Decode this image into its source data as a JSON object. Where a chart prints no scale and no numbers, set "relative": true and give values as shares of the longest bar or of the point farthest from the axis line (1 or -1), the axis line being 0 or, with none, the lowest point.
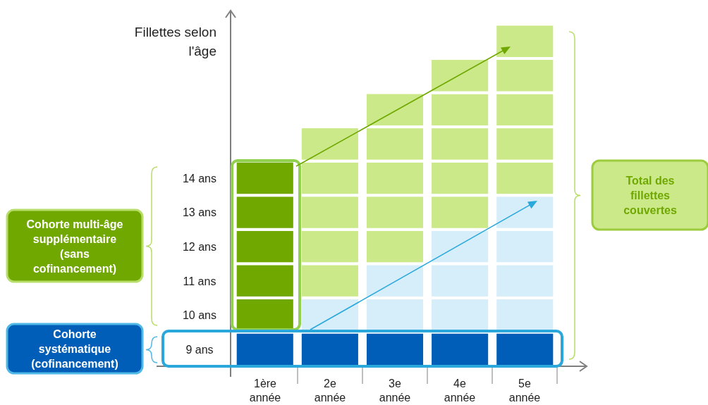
{
  "chart_data": {
    "type": "bar",
    "stacked": true,
    "relative": true,
    "ylabel": "Fillettes selon l'âge",
    "categories": [
      "1ère année",
      "2e année",
      "3e année",
      "4e année",
      "5e année"
    ],
    "series": [
      {
        "name": "9 ans",
        "values": [
          0.1,
          0.1,
          0.1,
          0.1,
          0.1
        ],
        "colors": [
          "#005eb8",
          "#005eb8",
          "#005eb8",
          "#005eb8",
          "#005eb8"
        ]
      },
      {
        "name": "10 ans",
        "values": [
          0.1,
          0.1,
          0.1,
          0.1,
          0.1
        ],
        "colors": [
          "#70a800",
          "#d6eef9",
          "#d6eef9",
          "#d6eef9",
          "#d6eef9"
        ]
      },
      {
        "name": "11 ans",
        "values": [
          0.1,
          0.1,
          0.1,
          0.1,
          0.1
        ],
        "colors": [
          "#70a800",
          "#cce98a",
          "#d6eef9",
          "#d6eef9",
          "#d6eef9"
        ]
      },
      {
        "name": "12 ans",
        "values": [
          0.1,
          0.1,
          0.1,
          0.1,
          0.1
        ],
        "colors": [
          "#70a800",
          "#cce98a",
          "#cce98a",
          "#d6eef9",
          "#d6eef9"
        ]
      },
      {
        "name": "13 ans",
        "values": [
          0.1,
          0.1,
          0.1,
          0.1,
          0.1
        ],
        "colors": [
          "#70a800",
          "#cce98a",
          "#cce98a",
          "#cce98a",
          "#d6eef9"
        ]
      },
      {
        "name": "14 ans",
        "values": [
          0.1,
          0.1,
          0.1,
          0.1,
          0.1
        ],
        "colors": [
          "#70a800",
          "#cce98a",
          "#cce98a",
          "#cce98a",
          "#cce98a"
        ]
      },
      {
        "values": [
          null,
          0.1,
          0.1,
          0.1,
          0.1
        ],
        "colors": [
          null,
          "#cce98a",
          "#cce98a",
          "#cce98a",
          "#cce98a"
        ]
      },
      {
        "values": [
          null,
          null,
          0.1,
          0.1,
          0.1
        ],
        "colors": [
          null,
          null,
          "#cce98a",
          "#cce98a",
          "#cce98a"
        ]
      },
      {
        "values": [
          null,
          null,
          null,
          0.1,
          0.1
        ],
        "colors": [
          null,
          null,
          null,
          "#cce98a",
          "#cce98a"
        ]
      },
      {
        "values": [
          null,
          null,
          null,
          null,
          0.1
        ],
        "colors": [
          null,
          null,
          null,
          null,
          "#cce98a"
        ]
      }
    ],
    "annotations": [
      "Total des fillettes couvertes",
      "Cohorte multi-âge supplémentaire (sans cofinancement)",
      "Cohorte systématique (cofinancement)"
    ]
  }
}
